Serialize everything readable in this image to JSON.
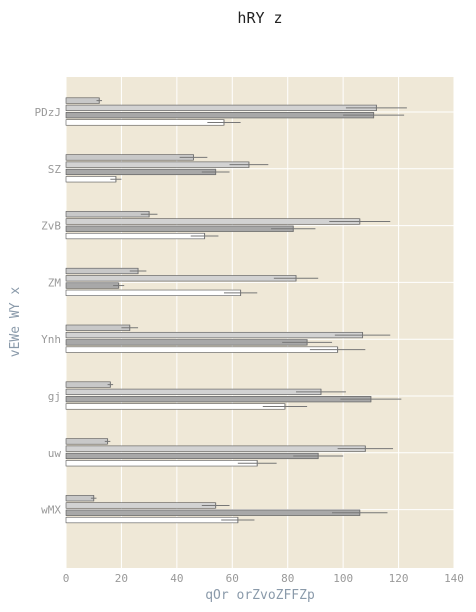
{
  "chart_data": {
    "type": "bar",
    "orientation": "horizontal",
    "title": "hRY z",
    "xlabel": "qOr orZvoZFFZp",
    "ylabel": "vEWe WY x",
    "xlim": [
      0,
      140
    ],
    "xticks": [
      0,
      20,
      40,
      60,
      80,
      100,
      120,
      140
    ],
    "categories": [
      "PDzJ",
      "SZ",
      "ZvB",
      "ZM",
      "Ynh",
      "gj",
      "uw",
      "wMX"
    ],
    "series": [
      {
        "color": "#c8c8c8",
        "values": [
          12,
          46,
          30,
          26,
          23,
          16,
          15,
          10
        ],
        "errors": [
          1,
          5,
          3,
          3,
          3,
          1,
          1,
          1
        ]
      },
      {
        "color": "#d2d2d2",
        "values": [
          112,
          66,
          106,
          83,
          107,
          92,
          108,
          54
        ],
        "errors": [
          11,
          7,
          11,
          8,
          10,
          9,
          10,
          5
        ]
      },
      {
        "color": "#a8a8a8",
        "values": [
          111,
          54,
          82,
          19,
          87,
          110,
          91,
          106
        ],
        "errors": [
          11,
          5,
          8,
          2,
          9,
          11,
          9,
          10
        ]
      },
      {
        "color": "#ffffff",
        "values": [
          57,
          18,
          50,
          63,
          98,
          79,
          69,
          62
        ],
        "errors": [
          6,
          2,
          5,
          6,
          10,
          8,
          7,
          6
        ]
      }
    ],
    "grid": true,
    "background": "#efe8d7",
    "grid_color": "#ffffff"
  }
}
